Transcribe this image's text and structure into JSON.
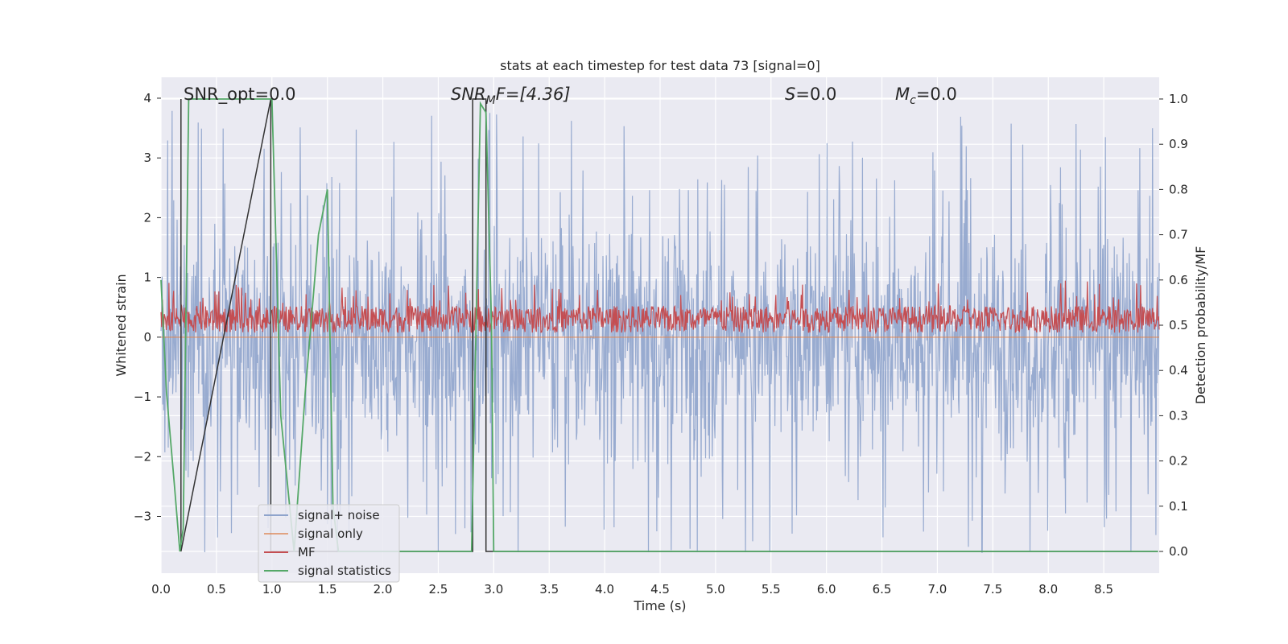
{
  "chart_data": {
    "type": "line",
    "title": "stats at each timestep for test data 73 [signal=0]",
    "xlabel": "Time (s)",
    "ylabel": "Whitened strain",
    "y2label": "Detection probability/MF",
    "xlim": [
      0.0,
      9.0
    ],
    "ylim": [
      -3.95,
      4.35
    ],
    "y2lim": [
      -0.048,
      1.048
    ],
    "x_ticks": [
      "0.0",
      "0.5",
      "1.0",
      "1.5",
      "2.0",
      "2.5",
      "3.0",
      "3.5",
      "4.0",
      "4.5",
      "5.0",
      "5.5",
      "6.0",
      "6.5",
      "7.0",
      "7.5",
      "8.0",
      "8.5"
    ],
    "y_ticks": [
      "−3",
      "−2",
      "−1",
      "0",
      "1",
      "2",
      "3",
      "4"
    ],
    "y2_ticks": [
      "0.0",
      "0.1",
      "0.2",
      "0.3",
      "0.4",
      "0.5",
      "0.6",
      "0.7",
      "0.8",
      "0.9",
      "1.0"
    ],
    "grid": true,
    "legend_position": "lower-left",
    "annotations": {
      "snr_opt": "SNR_opt=0.0",
      "snr_mf_main": "SNR",
      "snr_mf_sub": "M",
      "snr_mf_rest": "F=[4.36]",
      "s_main": "S",
      "s_rest": "=0.0",
      "mc_main": "M",
      "mc_sub": "c",
      "mc_rest": "=0.0"
    },
    "series": [
      {
        "name": "signal+ noise",
        "color": "#8fa4cc",
        "kind": "noise",
        "description_range": [
          -3.6,
          4.0
        ]
      },
      {
        "name": "signal only",
        "color": "#dd8452",
        "kind": "flat",
        "values_y": 0.0
      },
      {
        "name": "MF",
        "color": "#c44e52",
        "kind": "noise_band",
        "band_y": [
          0.0,
          1.0
        ]
      },
      {
        "name": "signal statistics",
        "color": "#55a868",
        "x": [
          0.0,
          0.05,
          0.12,
          0.17,
          0.2,
          0.25,
          1.0,
          1.08,
          1.2,
          1.3,
          1.42,
          1.5,
          1.55,
          1.6,
          2.5,
          2.8,
          2.88,
          2.93,
          2.98,
          3.0,
          8.99
        ],
        "y": [
          0.6,
          0.35,
          0.15,
          0.0,
          0.05,
          1.0,
          1.0,
          0.3,
          0.0,
          0.35,
          0.7,
          0.8,
          0.1,
          0.0,
          0.0,
          0.0,
          0.99,
          0.97,
          0.5,
          0.0,
          0.0
        ]
      },
      {
        "name": "",
        "color": "#333333",
        "kind": "step",
        "x": [
          0.18,
          0.18,
          0.18,
          0.99,
          0.99,
          2.81,
          2.81,
          2.93,
          2.93,
          8.99
        ],
        "y": [
          0.0,
          1.0,
          0.0,
          1.0,
          0.0,
          0.0,
          1.0,
          1.0,
          0.0,
          0.0
        ]
      }
    ]
  }
}
